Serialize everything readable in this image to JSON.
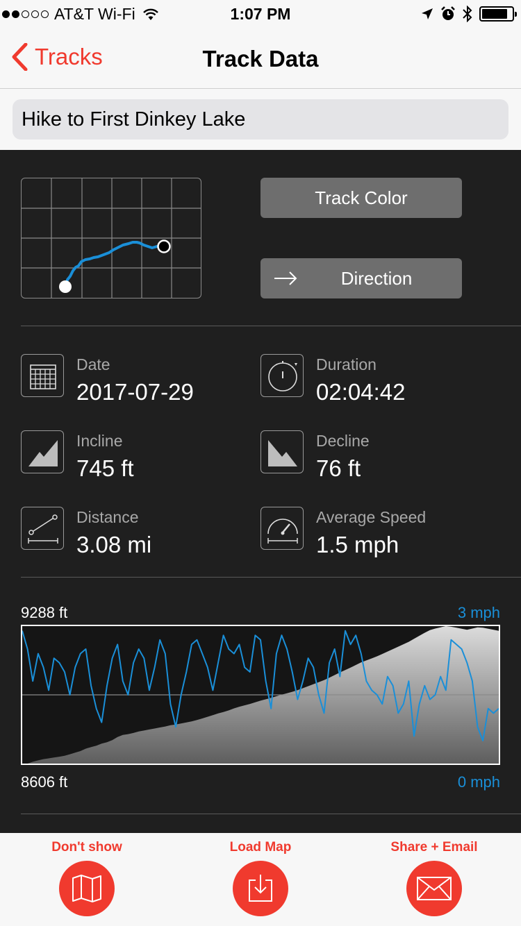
{
  "status_bar": {
    "carrier": "AT&T Wi-Fi",
    "time": "1:07 PM",
    "signal_bars_filled": 2,
    "signal_bars_total": 5,
    "battery_level": 0.85
  },
  "nav": {
    "back_label": "Tracks",
    "title": "Track Data"
  },
  "track_name": "Hike to First Dinkey Lake",
  "buttons": {
    "track_color": "Track Color",
    "direction": "Direction"
  },
  "stats": {
    "date": {
      "label": "Date",
      "value": "2017-07-29",
      "icon": "calendar-icon"
    },
    "duration": {
      "label": "Duration",
      "value": "02:04:42",
      "icon": "stopwatch-icon"
    },
    "incline": {
      "label": "Incline",
      "value": "745 ft",
      "icon": "incline-icon"
    },
    "decline": {
      "label": "Decline",
      "value": "76 ft",
      "icon": "decline-icon"
    },
    "distance": {
      "label": "Distance",
      "value": "3.08 mi",
      "icon": "distance-icon"
    },
    "avg_speed": {
      "label": "Average Speed",
      "value": "1.5 mph",
      "icon": "speedometer-icon"
    }
  },
  "chart": {
    "elev_max_label": "9288 ft",
    "elev_min_label": "8606 ft",
    "speed_max_label": "3 mph",
    "speed_min_label": "0 mph",
    "speed_color": "#1a8fd8"
  },
  "chart_data": {
    "type": "area",
    "series": [
      {
        "name": "",
        "unit": "ft",
        "values": [
          8606,
          8606,
          8615,
          8622,
          8628,
          8632,
          8636,
          8640,
          8645,
          8652,
          8660,
          8668,
          8680,
          8688,
          8695,
          8705,
          8712,
          8722,
          8738,
          8748,
          8752,
          8758,
          8765,
          8770,
          8775,
          8780,
          8785,
          8790,
          8796,
          8800,
          8805,
          8810,
          8815,
          8822,
          8830,
          8838,
          8846,
          8855,
          8862,
          8870,
          8880,
          8888,
          8895,
          8902,
          8910,
          8918,
          8925,
          8932,
          8940,
          8948,
          8955,
          8962,
          8970,
          8980,
          8990,
          9000,
          9010,
          9020,
          9032,
          9045,
          9058,
          9070,
          9082,
          9095,
          9108,
          9118,
          9128,
          9138,
          9150,
          9162,
          9174,
          9186,
          9198,
          9210,
          9225,
          9240,
          9255,
          9268,
          9276,
          9282,
          9288,
          9285,
          9280,
          9275,
          9270,
          9276,
          9282,
          9280,
          9275,
          9270,
          9265
        ]
      },
      {
        "name": "",
        "unit": "mph",
        "values": [
          2.9,
          2.5,
          1.8,
          2.4,
          2.1,
          1.6,
          2.3,
          2.2,
          2.0,
          1.5,
          2.1,
          2.4,
          2.5,
          1.7,
          1.2,
          0.9,
          1.7,
          2.3,
          2.6,
          1.8,
          1.5,
          2.2,
          2.5,
          2.3,
          1.6,
          2.1,
          2.7,
          2.4,
          1.3,
          0.8,
          1.5,
          2.0,
          2.6,
          2.7,
          2.4,
          2.1,
          1.6,
          2.2,
          2.8,
          2.5,
          2.4,
          2.6,
          2.1,
          2.0,
          2.8,
          2.7,
          1.8,
          1.2,
          2.4,
          2.8,
          2.5,
          2.0,
          1.4,
          1.8,
          2.3,
          2.1,
          1.5,
          1.1,
          2.2,
          2.5,
          1.9,
          2.9,
          2.6,
          2.8,
          2.4,
          1.8,
          1.6,
          1.5,
          1.3,
          1.9,
          1.7,
          1.1,
          1.3,
          1.8,
          0.6,
          1.3,
          1.7,
          1.4,
          1.5,
          1.9,
          1.6,
          2.7,
          2.6,
          2.5,
          2.2,
          1.8,
          0.8,
          0.5,
          1.2,
          1.1,
          1.2
        ]
      }
    ],
    "ylim_left": [
      8606,
      9288
    ],
    "ylim_right": [
      0,
      3
    ],
    "grid": false,
    "legend": "none"
  }
}
